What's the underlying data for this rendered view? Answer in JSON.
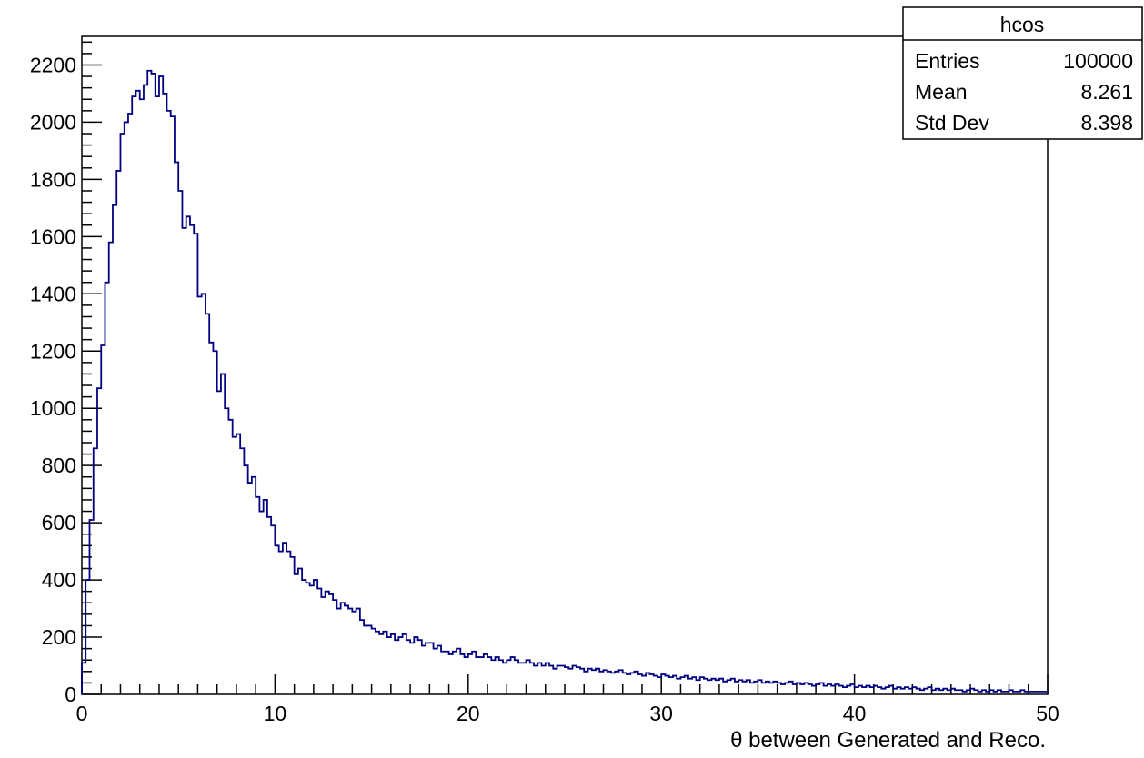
{
  "chart_data": {
    "type": "histogram",
    "title": "",
    "xlabel": "θ between Generated and Reco.",
    "ylabel": "",
    "xlim": [
      0,
      50
    ],
    "ylim": [
      0,
      2300
    ],
    "x_ticks": [
      0,
      10,
      20,
      30,
      40,
      50
    ],
    "y_ticks": [
      0,
      200,
      400,
      600,
      800,
      1000,
      1200,
      1400,
      1600,
      1800,
      2000,
      2200
    ],
    "line_color": "#000080",
    "grid": false,
    "bin_width": 0.2,
    "bins_start": 0,
    "counts": [
      110,
      400,
      610,
      860,
      1070,
      1220,
      1440,
      1580,
      1710,
      1830,
      1960,
      2000,
      2030,
      2090,
      2110,
      2080,
      2130,
      2180,
      2170,
      2090,
      2160,
      2100,
      2040,
      2020,
      1860,
      1760,
      1630,
      1670,
      1640,
      1610,
      1390,
      1400,
      1330,
      1230,
      1200,
      1060,
      1120,
      1000,
      960,
      900,
      910,
      860,
      800,
      740,
      760,
      690,
      640,
      680,
      620,
      590,
      520,
      500,
      530,
      500,
      480,
      420,
      440,
      400,
      390,
      380,
      400,
      370,
      340,
      360,
      350,
      330,
      300,
      320,
      310,
      300,
      290,
      300,
      260,
      240,
      240,
      230,
      220,
      210,
      220,
      200,
      210,
      190,
      200,
      210,
      190,
      180,
      200,
      190,
      170,
      180,
      180,
      160,
      170,
      150,
      150,
      140,
      150,
      160,
      140,
      130,
      140,
      150,
      130,
      130,
      140,
      130,
      120,
      130,
      120,
      110,
      120,
      130,
      120,
      110,
      110,
      120,
      110,
      100,
      110,
      100,
      110,
      100,
      90,
      100,
      100,
      95,
      90,
      100,
      95,
      90,
      80,
      90,
      85,
      90,
      80,
      85,
      80,
      75,
      80,
      85,
      75,
      70,
      75,
      80,
      70,
      65,
      75,
      70,
      65,
      60,
      70,
      65,
      60,
      65,
      55,
      60,
      65,
      55,
      60,
      50,
      60,
      55,
      50,
      55,
      50,
      55,
      45,
      50,
      55,
      45,
      50,
      45,
      50,
      40,
      45,
      50,
      40,
      45,
      40,
      45,
      40,
      35,
      40,
      45,
      35,
      40,
      35,
      40,
      35,
      30,
      35,
      40,
      30,
      35,
      30,
      35,
      30,
      25,
      30,
      35,
      25,
      30,
      25,
      30,
      25,
      30,
      25,
      20,
      25,
      30,
      20,
      25,
      20,
      25,
      20,
      25,
      20,
      15,
      20,
      25,
      15,
      20,
      15,
      20,
      15,
      20,
      15,
      15,
      10,
      15,
      20,
      15,
      10,
      15,
      10,
      15,
      10,
      15,
      10,
      10,
      15,
      10,
      10,
      15,
      10,
      10,
      10,
      10,
      10,
      10
    ]
  },
  "stats_box": {
    "name": "hcos",
    "rows": [
      {
        "label": "Entries",
        "value": "100000"
      },
      {
        "label": "Mean",
        "value": "8.261"
      },
      {
        "label": "Std Dev",
        "value": "8.398"
      }
    ]
  }
}
